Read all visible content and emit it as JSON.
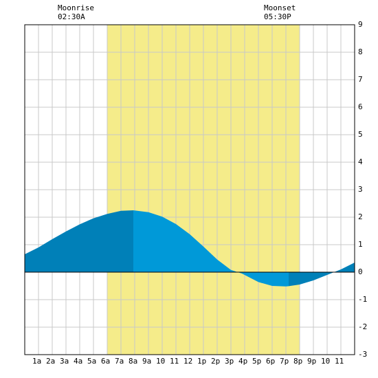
{
  "chart_data": {
    "type": "area",
    "title": "",
    "xlabel": "",
    "ylabel": "",
    "x_range_hours": [
      0,
      24
    ],
    "ylim": [
      -3,
      9
    ],
    "y_ticks": [
      -3,
      -2,
      -1,
      0,
      1,
      2,
      3,
      4,
      5,
      6,
      7,
      8,
      9
    ],
    "x_tick_labels": [
      "1a",
      "2a",
      "3a",
      "4a",
      "5a",
      "6a",
      "7a",
      "8a",
      "9a",
      "10",
      "11",
      "12",
      "1p",
      "2p",
      "3p",
      "4p",
      "5p",
      "6p",
      "7p",
      "8p",
      "9p",
      "10",
      "11"
    ],
    "daylight_hours": [
      6.0,
      20.0
    ],
    "moonrise": {
      "label": "Moonrise",
      "time": "02:30A",
      "hour": 2.5
    },
    "moonset": {
      "label": "Moonset",
      "time": "05:30P",
      "hour": 17.5
    },
    "tide_series": {
      "x_hours": [
        0,
        1,
        2,
        3,
        4,
        5,
        6,
        7,
        7.9,
        9,
        10,
        11,
        12,
        13,
        14,
        15,
        15.8,
        17,
        18,
        19,
        19.2,
        20,
        21,
        22,
        23,
        24
      ],
      "height_ft": [
        0.65,
        0.9,
        1.2,
        1.48,
        1.74,
        1.96,
        2.12,
        2.23,
        2.25,
        2.18,
        2.02,
        1.75,
        1.38,
        0.93,
        0.46,
        0.08,
        -0.05,
        -0.36,
        -0.5,
        -0.52,
        -0.51,
        -0.45,
        -0.3,
        -0.1,
        0.1,
        0.35
      ]
    },
    "colors": {
      "daylight": "#f5ec8a",
      "tide_primary": "#0099d8",
      "tide_dark": "#0080b8",
      "grid": "#c8c8c8",
      "background": "#ffffff"
    }
  }
}
